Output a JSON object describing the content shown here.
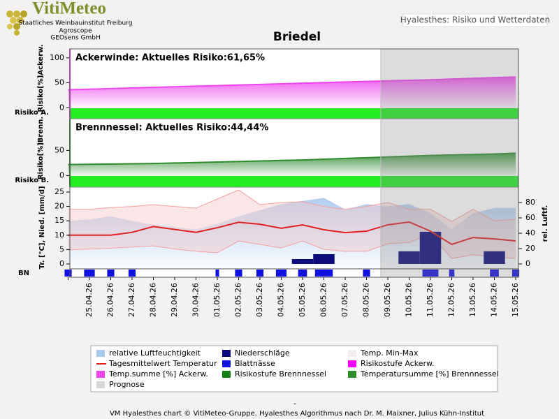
{
  "header": {
    "logo_title": "VitiMeteo",
    "logo_lines": [
      "Staatliches Weinbauinstitut Freiburg",
      "Agroscope",
      "GEOsens GmbH"
    ],
    "page_title": "Hyalesthes: Risiko und Wetterdaten"
  },
  "chart_data": [
    {
      "type": "area",
      "title": "Briedel",
      "annotation": "Ackerwinde: Aktuelles Risiko:61,65%",
      "ylabel": "Risiko[%]Ackerw.",
      "band_label": "Risiko A.",
      "band_color": "#22ee22",
      "ylim": [
        -22,
        118
      ],
      "yticks": [
        0,
        50,
        100
      ],
      "series": [
        {
          "color": "#ee44ee",
          "values": [
            36,
            37.2,
            38.4,
            39.6,
            40.8,
            42,
            43.2,
            44.4,
            45.6,
            46.8,
            48,
            49.2,
            50.4,
            51.6,
            52.8,
            54,
            55,
            56,
            57.5,
            59,
            60.5,
            61.65
          ]
        }
      ]
    },
    {
      "type": "area",
      "annotation": "Brennnessel: Aktuelles Risiko:44,44%",
      "ylabel": "Risiko[%]Brenn.",
      "band_label": "Risiko B.",
      "band_color": "#22ee22",
      "ylim": [
        -23,
        113
      ],
      "yticks": [
        0,
        50
      ],
      "series": [
        {
          "color": "#2e8b2e",
          "values": [
            22,
            22.5,
            23,
            23.5,
            24,
            25,
            26,
            27,
            28,
            29,
            30,
            31,
            32.5,
            34,
            35.5,
            37,
            38.5,
            40,
            41,
            42,
            43,
            44.44
          ]
        }
      ]
    },
    {
      "type": "weather",
      "ylabel": "Tr. [°C], Nied. [mm/d]",
      "y2label": "rel. Luftf.",
      "strip_label": "BN",
      "categories": [
        null,
        "25.04.26",
        "26.04.26",
        "27.04.26",
        "28.04.26",
        "29.04.26",
        "30.04.26",
        "01.05.26",
        "02.05.26",
        "03.05.26",
        "04.05.26",
        "05.05.26",
        "06.05.26",
        "07.05.26",
        "08.05.26",
        "09.05.26",
        "10.05.26",
        "11.05.26",
        "12.05.26",
        "13.05.26",
        "14.05.26",
        "15.05.26"
      ],
      "ylim": [
        -1.7,
        26.7
      ],
      "yticks": [
        0,
        5,
        10,
        15,
        20,
        25
      ],
      "y2lim": [
        -6.4,
        100
      ],
      "y2ticks": [
        0,
        20,
        40,
        60,
        80
      ],
      "humidity": {
        "axis": "y2",
        "color": "#a8c8ee",
        "values": [
          56,
          58,
          62,
          56,
          51,
          48,
          45,
          52,
          62,
          70,
          78,
          82,
          86,
          71,
          78,
          75,
          78,
          66,
          45,
          66,
          73,
          73
        ]
      },
      "temp_max": {
        "color": "#f4a0a0",
        "values": [
          19,
          19,
          19.6,
          20,
          20.6,
          20,
          19.4,
          22.6,
          25.7,
          20.6,
          21.4,
          21.6,
          20,
          19,
          20,
          21.4,
          19,
          19,
          14.8,
          19,
          15,
          15.5
        ]
      },
      "temp_min": {
        "color": "#f4a0a0",
        "values": [
          4.9,
          5.2,
          5.5,
          5.9,
          6.3,
          5.2,
          4.4,
          3.9,
          8,
          6.8,
          5.6,
          8,
          5.1,
          4.4,
          4.4,
          7,
          7.5,
          10.4,
          1.9,
          3.2,
          2.4,
          1.9
        ]
      },
      "temp_mean": {
        "color": "#e02020",
        "values": [
          10,
          10,
          10,
          11,
          13,
          12,
          11,
          12.6,
          14.5,
          13.8,
          12.4,
          13.6,
          11.9,
          10.9,
          11.4,
          13.6,
          14.6,
          11.4,
          6.8,
          9.2,
          8.7,
          8
        ]
      },
      "precipitation": {
        "color": "#0a0a7a",
        "values": [
          0,
          0,
          0,
          0,
          0,
          0,
          0,
          0,
          0,
          0,
          0,
          1.7,
          3.4,
          0,
          0,
          0,
          4.4,
          11.2,
          0,
          0,
          4.4,
          0
        ]
      },
      "leaf_wetness": {
        "color": "#1010e0",
        "values": [
          8,
          12,
          8,
          8,
          0,
          0,
          0,
          4,
          8,
          8,
          12,
          10,
          20,
          0,
          8,
          0,
          0,
          18,
          6,
          0,
          10,
          8
        ]
      }
    }
  ],
  "legend": [
    {
      "name": "relative Luftfeuchtigkeit",
      "color": "#a8c8ee"
    },
    {
      "name": "Niederschläge",
      "color": "#0a0a7a"
    },
    {
      "name": "Temp. Min-Max",
      "color": "#f4eeee"
    },
    {
      "name": "Tagesmittelwert Temperatur",
      "color": "#e02020",
      "style": "line"
    },
    {
      "name": "Blattnässe",
      "color": "#1010e0"
    },
    {
      "name": "Risikostufe Ackerw.",
      "color": "#ff00ff"
    },
    {
      "name": "Temp.summe [%] Ackerw.",
      "color": "#ee44ee"
    },
    {
      "name": "Risikostufe Brennnessel",
      "color": "#138013"
    },
    {
      "name": "Temperatursumme [%] Brennnessel",
      "color": "#2e8b2e"
    },
    {
      "name": "Prognose",
      "color": "#d8d8d8"
    }
  ],
  "footer": {
    "mark": "-",
    "text": "VM Hyalesthes chart © VitiMeteo-Gruppe. Hyalesthes Algorithmus nach Dr. M. Maixner, Julius Kühn-Institut"
  }
}
